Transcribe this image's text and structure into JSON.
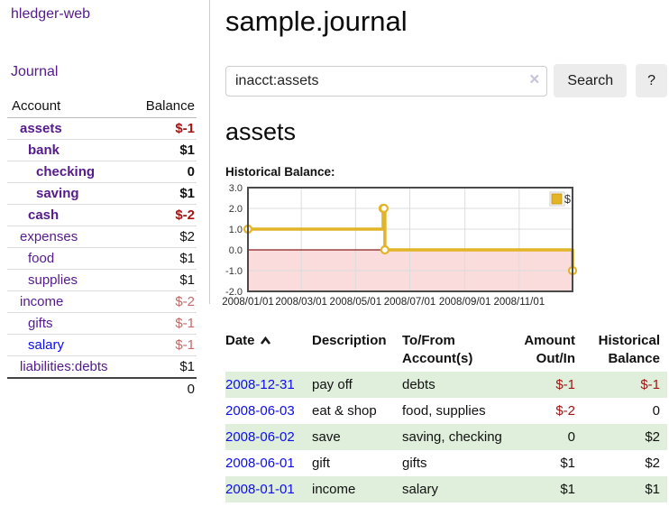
{
  "brand": "hledger-web",
  "sidebar": {
    "journal_link": "Journal",
    "accounts": {
      "col_account": "Account",
      "col_balance": "Balance",
      "rows": [
        {
          "name": "assets",
          "balance": "$-1"
        },
        {
          "name": "bank",
          "balance": "$1"
        },
        {
          "name": "checking",
          "balance": "0"
        },
        {
          "name": "saving",
          "balance": "$1"
        },
        {
          "name": "cash",
          "balance": "$-2"
        },
        {
          "name": "expenses",
          "balance": "$2"
        },
        {
          "name": "food",
          "balance": "$1"
        },
        {
          "name": "supplies",
          "balance": "$1"
        },
        {
          "name": "income",
          "balance": "$-2"
        },
        {
          "name": "gifts",
          "balance": "$-1"
        },
        {
          "name": "salary",
          "balance": "$-1"
        },
        {
          "name": "liabilities:debts",
          "balance": "$1"
        }
      ],
      "total": "0"
    }
  },
  "header": {
    "title": "sample.journal"
  },
  "search": {
    "value": "inacct:assets",
    "clear": "×",
    "button_label": "Search",
    "help_label": "?"
  },
  "account_view": {
    "heading": "assets",
    "chart_title": "Historical Balance:"
  },
  "chart_data": {
    "type": "line",
    "title": "Historical Balance:",
    "legend": "$",
    "x_start": "2008-01-01",
    "x_end": "2008-12-31",
    "ylim": [
      -2,
      3
    ],
    "ytick_values": [
      3,
      2,
      1,
      0,
      -1,
      -2
    ],
    "yticks": [
      "3.0",
      "2.0",
      "1.0",
      "0.0",
      "-1.0",
      "-2.0"
    ],
    "xtick_dates": [
      "2008-01-01",
      "2008-03-01",
      "2008-05-01",
      "2008-07-01",
      "2008-09-01",
      "2008-11-01"
    ],
    "xticks": [
      "2008/01/01",
      "2008/03/01",
      "2008/05/01",
      "2008/07/01",
      "2008/09/01",
      "2008/11/01"
    ],
    "series": [
      {
        "name": "$",
        "color": "#e2b428",
        "step": "after",
        "points": [
          {
            "date": "2008-01-01",
            "value": 1
          },
          {
            "date": "2008-06-01",
            "value": 2
          },
          {
            "date": "2008-06-02",
            "value": 2
          },
          {
            "date": "2008-06-03",
            "value": 0
          },
          {
            "date": "2008-12-31",
            "value": -1
          }
        ]
      }
    ],
    "style": {
      "grid": true,
      "legend_position": "top-right",
      "negative_region_fill": "#fadcdc",
      "zero_line_color": "#8b1f1f",
      "plot_border_color": "#4a4a4a",
      "gridline_color": "#dcdcdc"
    }
  },
  "register": {
    "headers": {
      "date": "Date",
      "description": "Description",
      "accounts": "To/From Account(s)",
      "amount": "Amount Out/In",
      "balance": "Historical Balance"
    },
    "rows": [
      {
        "date": "2008-12-31",
        "description": "pay off",
        "accounts": "debts",
        "amount": "$-1",
        "balance": "$-1"
      },
      {
        "date": "2008-06-03",
        "description": "eat & shop",
        "accounts": "food, supplies",
        "amount": "$-2",
        "balance": "0"
      },
      {
        "date": "2008-06-02",
        "description": "save",
        "accounts": "saving, checking",
        "amount": "0",
        "balance": "$2"
      },
      {
        "date": "2008-06-01",
        "description": "gift",
        "accounts": "gifts",
        "amount": "$1",
        "balance": "$2"
      },
      {
        "date": "2008-01-01",
        "description": "income",
        "accounts": "salary",
        "amount": "$1",
        "balance": "$1"
      }
    ]
  },
  "colors": {
    "link_purple": "#551a8b",
    "link_blue": "#0d0dee",
    "negative_strong": "#a31515",
    "negative_muted": "#c46a6a",
    "row_green": "#e0efdc",
    "chart_line": "#e2b428"
  }
}
